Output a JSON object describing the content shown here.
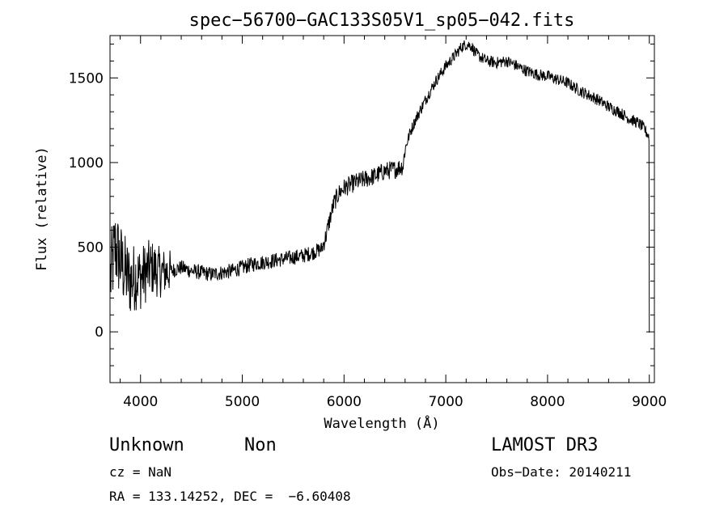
{
  "chart_data": {
    "type": "line",
    "title": "spec−56700−GAC133S05V1_sp05−042.fits",
    "xlabel": "Wavelength (Å)",
    "ylabel": "Flux (relative)",
    "xlim": [
      3700,
      9050
    ],
    "ylim": [
      -300,
      1750
    ],
    "xticks": [
      4000,
      5000,
      6000,
      7000,
      8000,
      9000
    ],
    "yticks": [
      0,
      500,
      1000,
      1500
    ],
    "series": [
      {
        "x": [
          3700,
          3750,
          3800,
          3850,
          3900,
          3950,
          4000,
          4100,
          4200,
          4300,
          4400,
          4500,
          4600,
          4700,
          4800,
          4900,
          5000,
          5100,
          5200,
          5300,
          5400,
          5500,
          5600,
          5700,
          5780,
          5820,
          5850,
          5900,
          5950,
          6000,
          6100,
          6200,
          6300,
          6400,
          6500,
          6580,
          6600,
          6650,
          6700,
          6800,
          6900,
          7000,
          7100,
          7150,
          7200,
          7250,
          7300,
          7400,
          7500,
          7600,
          7700,
          7800,
          7900,
          8000,
          8100,
          8200,
          8300,
          8400,
          8500,
          8600,
          8700,
          8800,
          8900,
          8950,
          9000
        ],
        "y": [
          300,
          500,
          420,
          350,
          300,
          330,
          320,
          380,
          350,
          360,
          380,
          360,
          350,
          340,
          350,
          360,
          380,
          400,
          410,
          420,
          430,
          440,
          450,
          470,
          490,
          560,
          640,
          760,
          820,
          850,
          880,
          900,
          920,
          950,
          960,
          980,
          1080,
          1180,
          1250,
          1370,
          1480,
          1570,
          1640,
          1680,
          1700,
          1690,
          1640,
          1600,
          1590,
          1600,
          1570,
          1540,
          1520,
          1510,
          1490,
          1470,
          1430,
          1400,
          1370,
          1330,
          1300,
          1260,
          1230,
          1200,
          1150
        ]
      }
    ]
  },
  "info": {
    "class_label": "Unknown",
    "subclass_label": "Non",
    "survey": "LAMOST DR3",
    "redshift": "cz = NaN",
    "obs_date": "Obs−Date: 20140211",
    "coords": "RA = 133.14252, DEC =  −6.60408"
  }
}
